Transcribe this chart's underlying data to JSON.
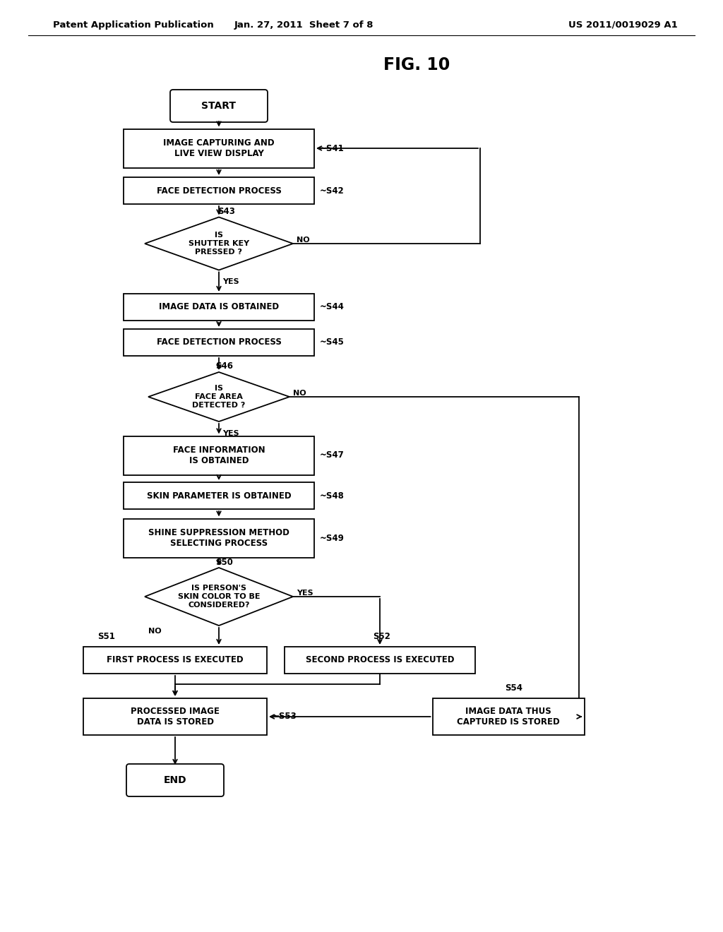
{
  "title": "FIG. 10",
  "header_left": "Patent Application Publication",
  "header_mid": "Jan. 27, 2011  Sheet 7 of 8",
  "header_right": "US 2011/0019029 A1",
  "bg_color": "#ffffff",
  "nodes": {
    "START": {
      "label": "START"
    },
    "S41": {
      "label": "IMAGE CAPTURING AND\nLIVE VIEW DISPLAY",
      "step": "~S41"
    },
    "S42": {
      "label": "FACE DETECTION PROCESS",
      "step": "~S42"
    },
    "S43": {
      "label": "IS\nSHUTTER KEY\nPRESSED ?",
      "step": "S43"
    },
    "S44": {
      "label": "IMAGE DATA IS OBTAINED",
      "step": "~S44"
    },
    "S45": {
      "label": "FACE DETECTION PROCESS",
      "step": "~S45"
    },
    "S46": {
      "label": "IS\nFACE AREA\nDETECTED ?",
      "step": "S46"
    },
    "S47": {
      "label": "FACE INFORMATION\nIS OBTAINED",
      "step": "~S47"
    },
    "S48": {
      "label": "SKIN PARAMETER IS OBTAINED",
      "step": "~S48"
    },
    "S49": {
      "label": "SHINE SUPPRESSION METHOD\nSELECTING PROCESS",
      "step": "~S49"
    },
    "S50": {
      "label": "IS PERSON'S\nSKIN COLOR TO BE\nCONSIDERED?",
      "step": "S50"
    },
    "S51": {
      "label": "FIRST PROCESS IS EXECUTED",
      "step": "S51"
    },
    "S52": {
      "label": "SECOND PROCESS IS EXECUTED",
      "step": "S52"
    },
    "S53": {
      "label": "PROCESSED IMAGE\nDATA IS STORED",
      "step": "~S53"
    },
    "S54": {
      "label": "IMAGE DATA THUS\nCAPTURED IS STORED",
      "step": "S54"
    },
    "END": {
      "label": "END"
    }
  }
}
